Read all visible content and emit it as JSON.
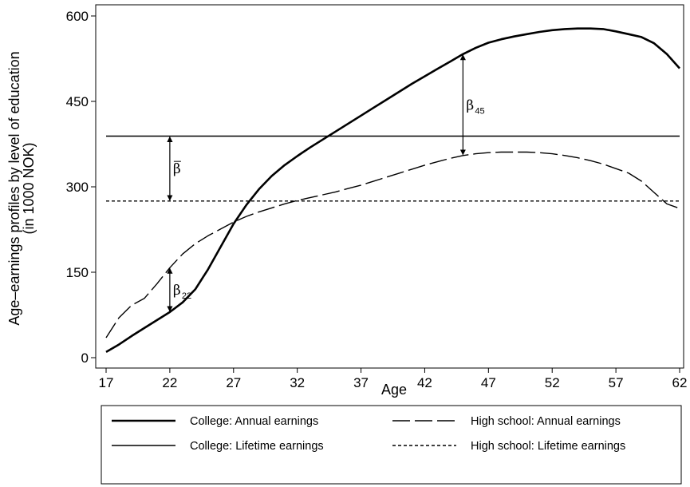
{
  "chart_data": {
    "type": "line",
    "xlabel": "Age",
    "ylabel_line1": "Age–earnings profiles by level of education",
    "ylabel_line2": "(in 1000 NOK)",
    "xlim": [
      17,
      62
    ],
    "ylim": [
      0,
      600
    ],
    "x_ticks": [
      17,
      22,
      27,
      32,
      37,
      42,
      47,
      52,
      57,
      62
    ],
    "y_ticks": [
      0,
      150,
      300,
      450,
      600
    ],
    "grid": false,
    "legend_position": "bottom",
    "series": [
      {
        "name": "College: Annual earnings",
        "style": "solid-thick",
        "x": [
          17,
          18,
          19,
          20,
          21,
          22,
          23,
          24,
          25,
          26,
          27,
          28,
          29,
          30,
          31,
          32,
          33,
          34,
          35,
          36,
          37,
          38,
          39,
          40,
          41,
          42,
          43,
          44,
          45,
          46,
          47,
          48,
          49,
          50,
          51,
          52,
          53,
          54,
          55,
          56,
          57,
          58,
          59,
          60,
          61,
          62
        ],
        "values": [
          10,
          23,
          38,
          52,
          66,
          80,
          97,
          120,
          155,
          195,
          235,
          268,
          296,
          319,
          338,
          354,
          369,
          383,
          397,
          411,
          425,
          439,
          453,
          467,
          481,
          494,
          507,
          520,
          533,
          544,
          553,
          559,
          564,
          568,
          572,
          575,
          577,
          578,
          578,
          577,
          573,
          568,
          563,
          552,
          533,
          508
        ]
      },
      {
        "name": "High school: Annual earnings",
        "style": "long-dash",
        "x": [
          17,
          18,
          19,
          20,
          21,
          22,
          23,
          24,
          25,
          26,
          27,
          28,
          29,
          30,
          31,
          32,
          33,
          34,
          35,
          36,
          37,
          38,
          39,
          40,
          41,
          42,
          43,
          44,
          45,
          46,
          47,
          48,
          49,
          50,
          51,
          52,
          53,
          54,
          55,
          56,
          57,
          58,
          59,
          60,
          61,
          62
        ],
        "values": [
          35,
          70,
          92,
          104,
          130,
          158,
          182,
          200,
          214,
          226,
          238,
          248,
          256,
          263,
          270,
          276,
          281,
          286,
          291,
          297,
          303,
          310,
          317,
          324,
          331,
          338,
          344,
          350,
          355,
          358,
          360,
          361,
          361,
          361,
          360,
          358,
          355,
          351,
          346,
          340,
          332,
          324,
          310,
          290,
          270,
          262
        ]
      },
      {
        "name": "College: Lifetime earnings",
        "style": "solid-thin",
        "x": [
          17,
          62
        ],
        "values": [
          389,
          389
        ]
      },
      {
        "name": "High school: Lifetime earnings",
        "style": "short-dash",
        "x": [
          17,
          62
        ],
        "values": [
          275,
          275
        ]
      }
    ],
    "annotations": [
      {
        "label": "β",
        "sub": "22",
        "x": 22,
        "from": 80,
        "to": 158
      },
      {
        "label": "β",
        "sub": "45",
        "x": 45,
        "from": 355,
        "to": 533
      },
      {
        "label": "β",
        "sub": "",
        "overline": true,
        "x": 22,
        "from": 275,
        "to": 389
      }
    ]
  }
}
